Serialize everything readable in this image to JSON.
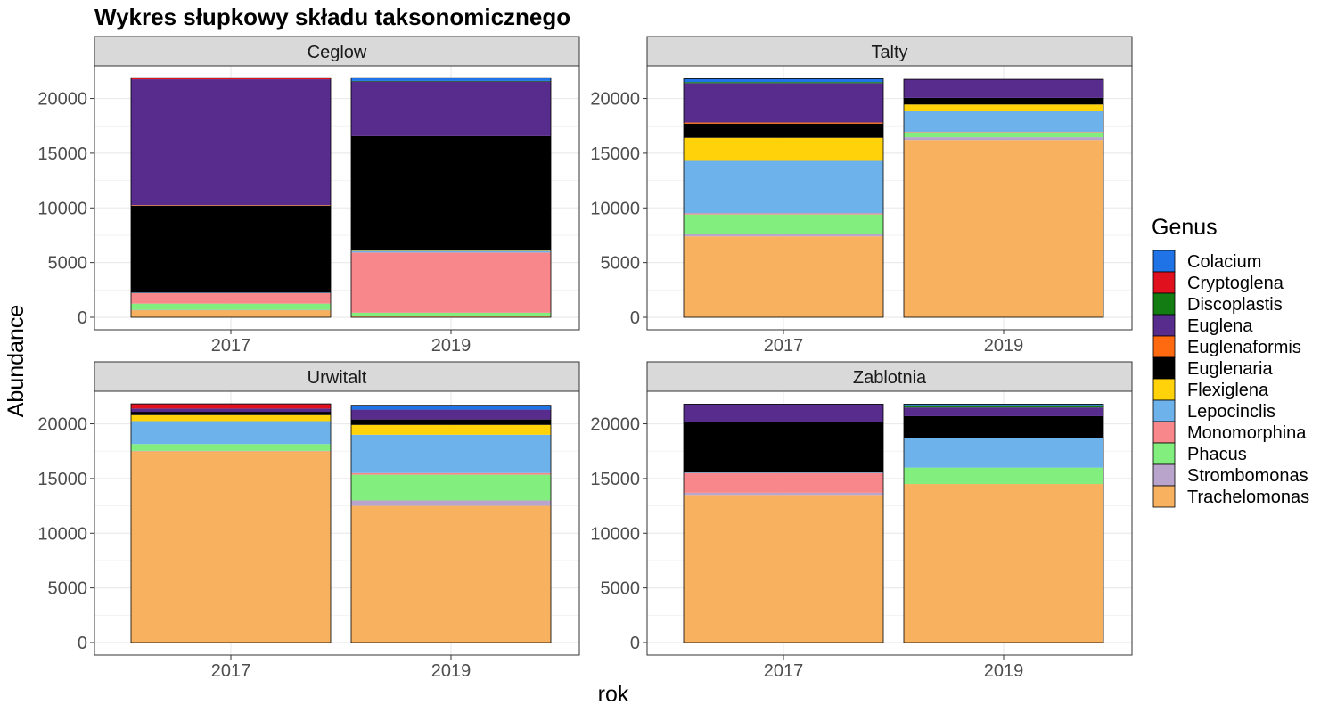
{
  "chart_data": {
    "type": "bar",
    "stacked": true,
    "title": "Wykres słupkowy składu taksonomicznego",
    "xlabel": "rok",
    "ylabel": "Abundance",
    "categories": [
      "2017",
      "2019"
    ],
    "ylim": [
      0,
      22000
    ],
    "yticks": [
      "0",
      "5000",
      "10000",
      "15000",
      "20000"
    ],
    "grid": true,
    "legend_position": "right",
    "legend_title": "Genus",
    "genera": [
      {
        "name": "Colacium",
        "color": "#1f73e6"
      },
      {
        "name": "Cryptoglena",
        "color": "#e0101e"
      },
      {
        "name": "Discoplastis",
        "color": "#137d13"
      },
      {
        "name": "Euglena",
        "color": "#582c8c"
      },
      {
        "name": "Euglenaformis",
        "color": "#ff6a10"
      },
      {
        "name": "Euglenaria",
        "color": "#000000"
      },
      {
        "name": "Flexiglena",
        "color": "#ffd20a"
      },
      {
        "name": "Lepocinclis",
        "color": "#6eb2ec"
      },
      {
        "name": "Monomorphina",
        "color": "#f7878a"
      },
      {
        "name": "Phacus",
        "color": "#82ee7e"
      },
      {
        "name": "Strombomonas",
        "color": "#b9a4cc"
      },
      {
        "name": "Trachelomonas",
        "color": "#f8b15e"
      }
    ],
    "panels": [
      {
        "name": "Ceglow",
        "bars": [
          {
            "x": "2017",
            "values": {
              "Trachelomonas": 650,
              "Strombomonas": 30,
              "Phacus": 570,
              "Monomorphina": 950,
              "Lepocinclis": 50,
              "Euglenaria": 7950,
              "Euglenaformis": 50,
              "Euglena": 11500,
              "Discoplastis": 0,
              "Cryptoglena": 100,
              "Colacium": 50
            }
          },
          {
            "x": "2019",
            "values": {
              "Trachelomonas": 100,
              "Strombomonas": 30,
              "Phacus": 290,
              "Monomorphina": 5500,
              "Lepocinclis": 150,
              "Flexiglena": 30,
              "Euglenaria": 10450,
              "Euglena": 5000,
              "Discoplastis": 50,
              "Colacium": 300
            }
          }
        ]
      },
      {
        "name": "Talty",
        "bars": [
          {
            "x": "2017",
            "values": {
              "Trachelomonas": 7400,
              "Strombomonas": 200,
              "Phacus": 1800,
              "Monomorphina": 100,
              "Lepocinclis": 4800,
              "Flexiglena": 2100,
              "Euglenaria": 1300,
              "Euglenaformis": 100,
              "Euglena": 3600,
              "Discoplastis": 100,
              "Colacium": 300
            }
          },
          {
            "x": "2019",
            "values": {
              "Trachelomonas": 16200,
              "Strombomonas": 250,
              "Phacus": 450,
              "Monomorphina": 50,
              "Lepocinclis": 1900,
              "Flexiglena": 600,
              "Euglenaria": 600,
              "Euglena": 1700
            }
          }
        ]
      },
      {
        "name": "Urwitalt",
        "bars": [
          {
            "x": "2017",
            "values": {
              "Trachelomonas": 17500,
              "Strombomonas": 30,
              "Phacus": 620,
              "Lepocinclis": 2100,
              "Flexiglena": 550,
              "Euglenaria": 300,
              "Euglena": 300,
              "Cryptoglena": 400,
              "Colacium": 30
            }
          },
          {
            "x": "2019",
            "values": {
              "Trachelomonas": 12500,
              "Strombomonas": 500,
              "Phacus": 2350,
              "Monomorphina": 150,
              "Lepocinclis": 3500,
              "Flexiglena": 900,
              "Euglenaria": 500,
              "Euglena": 900,
              "Colacium": 400
            }
          }
        ]
      },
      {
        "name": "Zablotnia",
        "bars": [
          {
            "x": "2017",
            "values": {
              "Trachelomonas": 13500,
              "Strombomonas": 200,
              "Monomorphina": 1800,
              "Lepocinclis": 50,
              "Euglenaria": 4650,
              "Euglena": 1600
            }
          },
          {
            "x": "2019",
            "values": {
              "Trachelomonas": 14500,
              "Phacus": 1500,
              "Lepocinclis": 2700,
              "Euglenaria": 2000,
              "Euglena": 800,
              "Discoplastis": 200,
              "Colacium": 100
            }
          }
        ]
      }
    ]
  }
}
